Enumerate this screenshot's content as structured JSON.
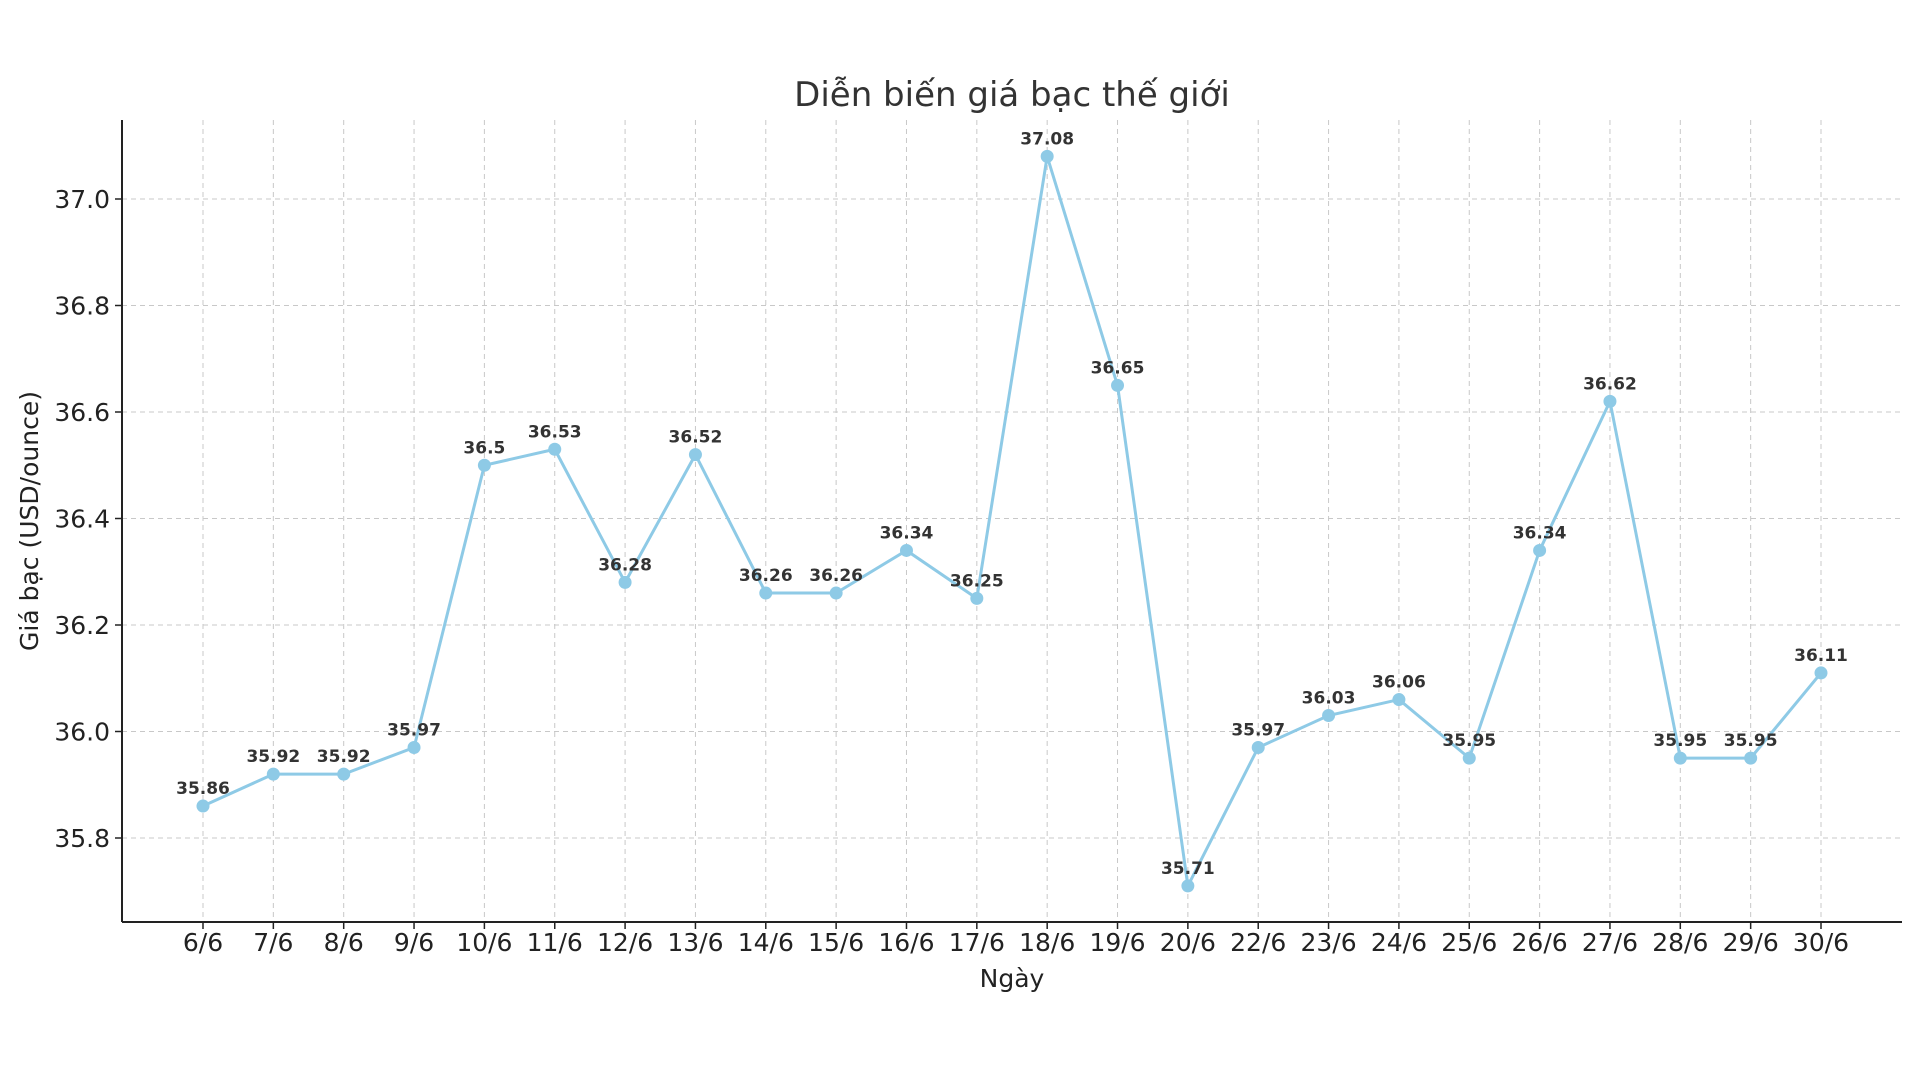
{
  "chart_data": {
    "type": "line",
    "title": "Diễn biến giá bạc thế giới",
    "xlabel": "Ngày",
    "ylabel": "Giá bạc (USD/ounce)",
    "categories": [
      "6/6",
      "7/6",
      "8/6",
      "9/6",
      "10/6",
      "11/6",
      "12/6",
      "13/6",
      "14/6",
      "15/6",
      "16/6",
      "17/6",
      "18/6",
      "19/6",
      "20/6",
      "22/6",
      "23/6",
      "24/6",
      "25/6",
      "26/6",
      "27/6",
      "28/6",
      "29/6",
      "30/6"
    ],
    "series": [
      {
        "name": "Giá bạc",
        "values": [
          35.86,
          35.92,
          35.92,
          35.97,
          36.5,
          36.53,
          36.28,
          36.52,
          36.26,
          36.26,
          36.34,
          36.25,
          37.08,
          36.65,
          35.71,
          35.97,
          36.03,
          36.06,
          35.95,
          36.34,
          36.62,
          35.95,
          35.95,
          36.11
        ],
        "labels": [
          "35.86",
          "35.92",
          "35.92",
          "35.97",
          "36.5",
          "36.53",
          "36.28",
          "36.52",
          "36.26",
          "36.26",
          "36.34",
          "36.25",
          "37.08",
          "36.65",
          "35.71",
          "35.97",
          "36.03",
          "36.06",
          "35.95",
          "36.34",
          "36.62",
          "35.95",
          "35.95",
          "36.11"
        ]
      }
    ],
    "yticks": [
      35.8,
      36.0,
      36.2,
      36.4,
      36.6,
      36.8,
      37.0
    ],
    "ytick_labels": [
      "35.8",
      "36.0",
      "36.2",
      "36.4",
      "36.6",
      "36.8",
      "37.0"
    ],
    "ylim": [
      35.65,
      37.15
    ],
    "grid": true,
    "line_color": "#8ecae6"
  }
}
